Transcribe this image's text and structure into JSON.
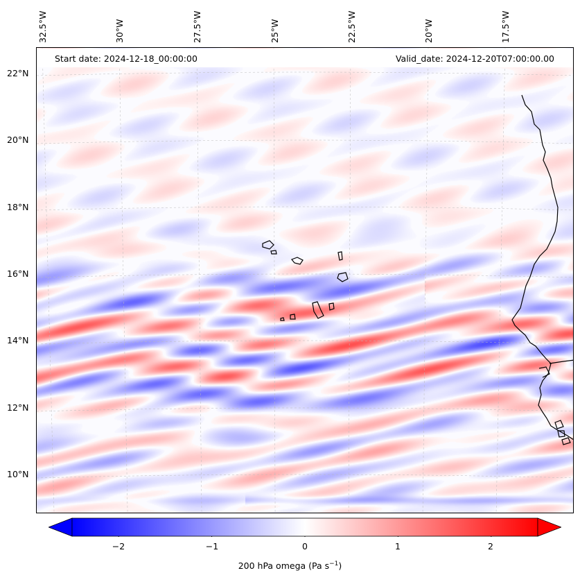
{
  "map": {
    "start_date": "Start date: 2024-12-18_00:00:00",
    "valid_date": "Valid_date: 2024-12-20T07:00:00.00",
    "lat_labels": [
      "22°N",
      "20°N",
      "18°N",
      "16°N",
      "14°N",
      "12°N",
      "10°N"
    ],
    "lat_values": [
      22,
      20,
      18,
      16,
      14,
      12,
      10
    ],
    "lon_labels": [
      "32.5°W",
      "30°W",
      "27.5°W",
      "25°W",
      "22.5°W",
      "20°W",
      "17.5°W"
    ],
    "lon_values": [
      -32.5,
      -30,
      -27.5,
      -25,
      -22.5,
      -20,
      -17.5
    ],
    "extent": {
      "lon_min": -33.0,
      "lon_max": -16.0,
      "lat_min": 8.9,
      "lat_max": 22.8
    },
    "coastline_color": "#000000",
    "grid_color": "#bbbbbb"
  },
  "colorbar": {
    "min": -2.75,
    "max": 2.75,
    "tick_values": [
      -2,
      -1,
      0,
      1,
      2
    ],
    "tick_labels": [
      "−2",
      "−1",
      "0",
      "1",
      "2"
    ],
    "label": "200 hPa omega (Pa s",
    "label_exp": "−1",
    "label_end": ")",
    "color_negative": "#0000ff",
    "color_zero": "#ffffff",
    "color_positive": "#ff0000"
  }
}
